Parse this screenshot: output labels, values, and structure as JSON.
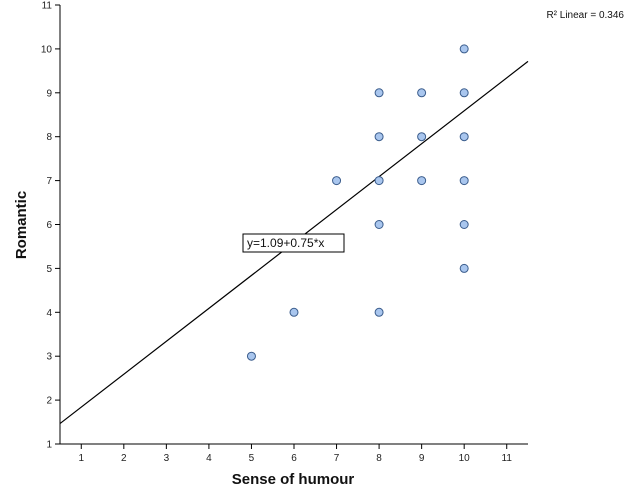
{
  "chart_data": {
    "type": "scatter",
    "title": "",
    "xlabel": "Sense of humour",
    "ylabel": "Romantic",
    "xlim": [
      0.5,
      11.5
    ],
    "ylim": [
      1,
      11
    ],
    "x_ticks": [
      1,
      2,
      3,
      4,
      5,
      6,
      7,
      8,
      9,
      10,
      11
    ],
    "y_ticks": [
      1,
      2,
      3,
      4,
      5,
      6,
      7,
      8,
      9,
      10,
      11
    ],
    "grid": false,
    "points": [
      {
        "x": 5,
        "y": 3
      },
      {
        "x": 6,
        "y": 4
      },
      {
        "x": 7,
        "y": 7
      },
      {
        "x": 8,
        "y": 4
      },
      {
        "x": 8,
        "y": 6
      },
      {
        "x": 8,
        "y": 7
      },
      {
        "x": 8,
        "y": 8
      },
      {
        "x": 8,
        "y": 9
      },
      {
        "x": 9,
        "y": 7
      },
      {
        "x": 9,
        "y": 8
      },
      {
        "x": 9,
        "y": 9
      },
      {
        "x": 10,
        "y": 5
      },
      {
        "x": 10,
        "y": 6
      },
      {
        "x": 10,
        "y": 7
      },
      {
        "x": 10,
        "y": 8
      },
      {
        "x": 10,
        "y": 9
      },
      {
        "x": 10,
        "y": 10
      }
    ],
    "fit_line": {
      "intercept": 1.09,
      "slope": 0.75
    },
    "fit_equation": "y=1.09+0.75*x",
    "r2_label": "R² Linear = 0.346",
    "marker_fill": "#a9c6ee",
    "marker_stroke": "#3a5c8c",
    "line_color": "#000000"
  }
}
